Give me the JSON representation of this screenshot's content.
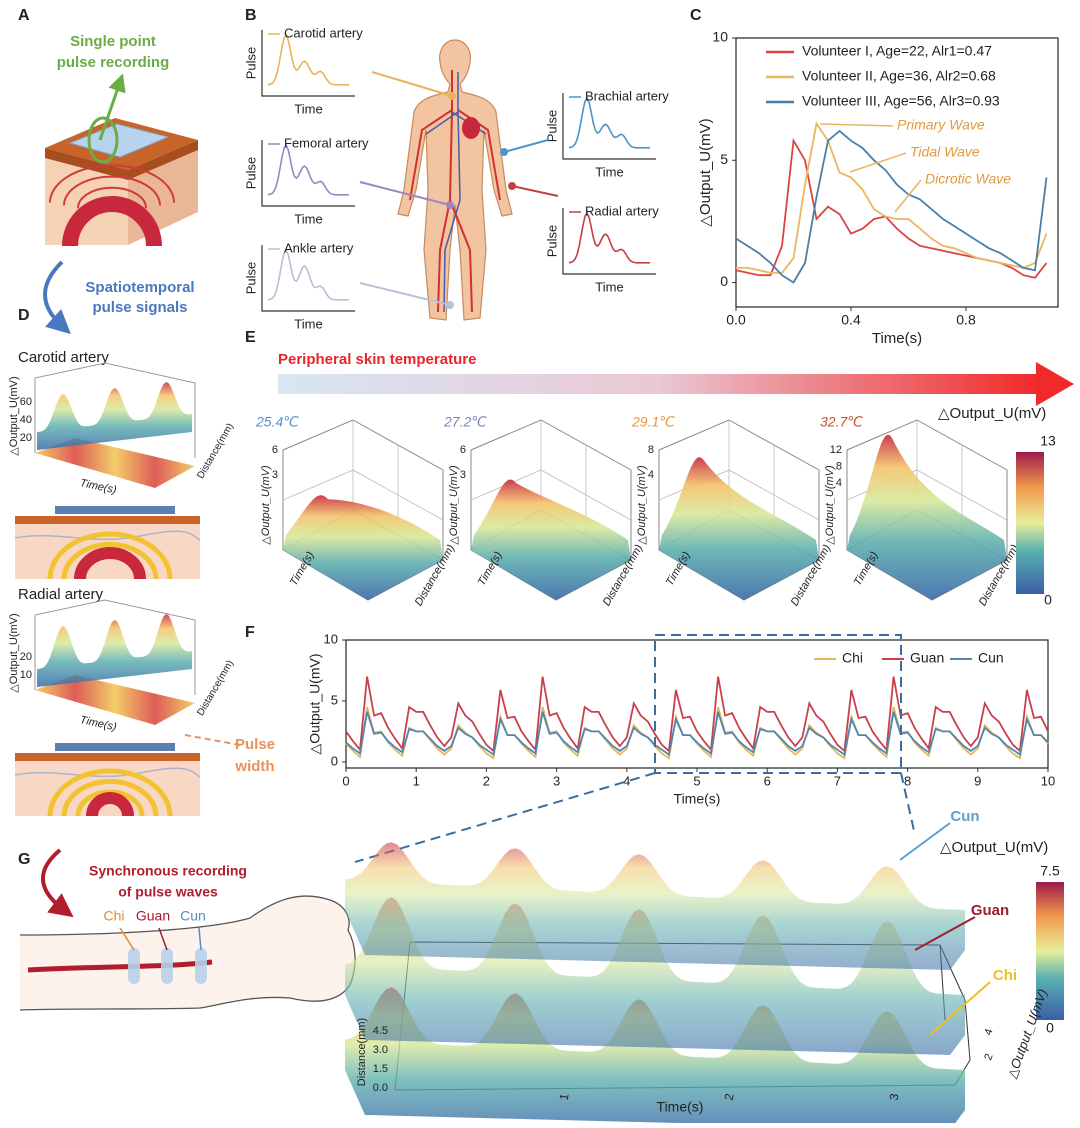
{
  "figure": {
    "panel_labels": [
      "A",
      "B",
      "C",
      "D",
      "E",
      "F",
      "G"
    ],
    "A": {
      "title_lines": [
        "Single point",
        "pulse recording"
      ],
      "arrow_lines": [
        "Spatiotemporal",
        "pulse signals"
      ]
    },
    "B": {
      "arteries": [
        {
          "name": "Carotid artery",
          "y_label": "Pulse",
          "x_label": "Time"
        },
        {
          "name": "Femoral artery",
          "y_label": "Pulse",
          "x_label": "Time"
        },
        {
          "name": "Ankle artery",
          "y_label": "Pulse",
          "x_label": "Time"
        },
        {
          "name": "Brachial artery",
          "y_label": "Pulse",
          "x_label": "Time"
        },
        {
          "name": "Radial artery",
          "y_label": "Pulse",
          "x_label": "Time"
        }
      ]
    },
    "D": {
      "sites": [
        {
          "name": "Carotid artery",
          "z_label": "△Output_U(mV)",
          "zticks": [
            "20",
            "40",
            "60"
          ],
          "x_label": "Time(s)",
          "y_label": "Distance(mm)"
        },
        {
          "name": "Radial artery",
          "z_label": "△Output_U(mV)",
          "zticks": [
            "10",
            "20"
          ],
          "x_label": "Time(s)",
          "y_label": "Distance(mm)"
        }
      ],
      "pulse_width_lines": [
        "Pulse",
        "width"
      ]
    },
    "E": {
      "title": "Peripheral skin temperature",
      "temperatures": [
        "25.4℃",
        "27.2℃",
        "29.1℃",
        "32.7℃"
      ],
      "zticks": [
        [
          "3",
          "6"
        ],
        [
          "3",
          "6"
        ],
        [
          "4",
          "8"
        ],
        [
          "4",
          "8",
          "12"
        ]
      ],
      "z_label": "△Output_U(mV)",
      "x_label": "Time(s)",
      "y_label": "Distance(mm)",
      "colorbar_label": "△Output_U(mV)",
      "colorbar_ticks": [
        "0",
        "13"
      ]
    },
    "G": {
      "title_lines": [
        "Synchronous recording",
        "of pulse waves"
      ],
      "sites": [
        "Chi",
        "Guan",
        "Cun"
      ],
      "layer_labels": [
        "Cun",
        "Guan",
        "Chi"
      ],
      "colorbar_label": "△Output_U(mV)",
      "colorbar_ticks": [
        "0",
        "7.5"
      ],
      "x_label": "Time(s)",
      "xticks": [
        "1",
        "2",
        "3"
      ],
      "y_label": "Distance(mm)",
      "yticks": [
        "0.0",
        "1.5",
        "3.0",
        "4.5"
      ],
      "z_label": "△Output_U(mV)",
      "zticks": [
        "2",
        "4"
      ]
    }
  },
  "chart_data": [
    {
      "type": "line",
      "x_label": "Time(s)",
      "y_label": "△Output_U(mV)",
      "legend": "upper left",
      "x": [
        0,
        0.04,
        0.08,
        0.12,
        0.16,
        0.2,
        0.24,
        0.28,
        0.32,
        0.36,
        0.4,
        0.44,
        0.48,
        0.52,
        0.56,
        0.6,
        0.64,
        0.68,
        0.72,
        0.76,
        0.8,
        0.84,
        0.88,
        0.92,
        0.96,
        1.0,
        1.04,
        1.08
      ],
      "series": [
        {
          "name": "Volunteer I, Age=22, Alr1=0.47",
          "color": "#d94545",
          "values": [
            0.5,
            0.4,
            0.3,
            0.3,
            1.5,
            5.8,
            5.0,
            2.6,
            3.1,
            2.8,
            2.0,
            2.2,
            2.6,
            2.7,
            2.2,
            1.8,
            1.5,
            1.4,
            1.3,
            1.2,
            1.1,
            1.0,
            0.9,
            0.8,
            0.6,
            0.3,
            0.2,
            0.8
          ]
        },
        {
          "name": "Volunteer II, Age=36, Alr2=0.68",
          "color": "#e8b760",
          "values": [
            0.6,
            0.6,
            0.5,
            0.4,
            0.4,
            1.0,
            4.0,
            6.5,
            5.8,
            4.5,
            4.3,
            3.8,
            3.0,
            2.7,
            2.6,
            2.6,
            2.2,
            1.8,
            1.5,
            1.4,
            1.2,
            1.0,
            0.9,
            0.8,
            0.7,
            0.6,
            0.8,
            2.0
          ]
        },
        {
          "name": "Volunteer III, Age=56, Alr3=0.93",
          "color": "#4a7fa8",
          "values": [
            1.8,
            1.5,
            1.2,
            0.8,
            0.3,
            0.0,
            0.8,
            3.5,
            5.8,
            6.2,
            5.8,
            5.5,
            5.0,
            4.6,
            4.0,
            3.6,
            3.4,
            3.0,
            2.6,
            2.3,
            2.0,
            1.7,
            1.4,
            1.2,
            0.9,
            0.6,
            0.5,
            4.3
          ]
        }
      ],
      "annotations": [
        "Primary Wave",
        "Tidal Wave",
        "Dicrotic Wave"
      ],
      "xlim": [
        0,
        1.12
      ],
      "xticks": [
        {
          "value": 0,
          "label": "0.0"
        },
        {
          "value": 0.4,
          "label": "0.4"
        },
        {
          "value": 0.8,
          "label": "0.8"
        }
      ],
      "ylim": [
        -1,
        10
      ],
      "yticks": [
        0,
        5,
        10
      ]
    },
    {
      "type": "line",
      "x_label": "Time(s)",
      "y_label": "△Output_U(mV)",
      "legend": "upper right",
      "x": [
        0,
        0.1,
        0.2,
        0.3,
        0.4,
        0.5,
        0.6,
        0.7,
        0.8,
        0.9,
        1.0,
        1.1,
        1.2,
        1.3,
        1.4,
        1.5,
        1.6,
        1.7,
        1.8,
        1.9,
        2.0,
        2.1,
        2.2,
        2.3,
        2.4,
        2.5,
        2.6,
        2.7,
        2.8,
        2.9,
        3.0,
        3.1,
        3.2,
        3.3,
        3.4,
        3.5,
        3.6,
        3.7,
        3.8,
        3.9,
        4.0,
        4.1,
        4.2,
        4.3,
        4.4,
        4.5,
        4.6,
        4.7,
        4.8,
        4.9,
        5.0,
        5.1,
        5.2,
        5.3,
        5.4,
        5.5,
        5.6,
        5.7,
        5.8,
        5.9,
        6.0,
        6.1,
        6.2,
        6.3,
        6.4,
        6.5,
        6.6,
        6.7,
        6.8,
        6.9,
        7.0,
        7.1,
        7.2,
        7.3,
        7.4,
        7.5,
        7.6,
        7.7,
        7.8,
        7.9,
        8.0,
        8.1,
        8.2,
        8.3,
        8.4,
        8.5,
        8.6,
        8.7,
        8.8,
        8.9,
        9.0,
        9.1,
        9.2,
        9.3,
        9.4,
        9.5,
        9.6,
        9.7,
        9.8,
        9.9,
        10.0
      ],
      "series": [
        {
          "name": "Chi",
          "color": "#e5b75b",
          "values": [
            1.5,
            0.9,
            0.4,
            4.5,
            2.4,
            2.5,
            1.6,
            1.0,
            0.5,
            2.8,
            2.5,
            2.5,
            1.8,
            1.1,
            0.6,
            1.1,
            3.0,
            2.4,
            2.0,
            1.3,
            0.7,
            0.3,
            3.7,
            2.2,
            2.2,
            1.5,
            0.9,
            0.4,
            4.5,
            2.4,
            2.5,
            1.6,
            1.0,
            0.5,
            2.8,
            2.5,
            2.5,
            1.8,
            1.1,
            0.6,
            1.1,
            3.0,
            2.4,
            2.0,
            1.3,
            0.7,
            0.3,
            3.7,
            2.2,
            2.2,
            1.5,
            0.9,
            0.4,
            4.5,
            2.4,
            2.5,
            1.6,
            1.0,
            0.5,
            2.8,
            2.5,
            2.5,
            1.8,
            1.1,
            0.6,
            1.1,
            3.0,
            2.4,
            2.0,
            1.3,
            0.7,
            0.3,
            3.7,
            2.2,
            2.2,
            1.5,
            0.9,
            0.4,
            4.5,
            2.4,
            2.5,
            1.6,
            1.0,
            0.5,
            2.8,
            2.5,
            2.5,
            1.8,
            1.1,
            0.6,
            1.1,
            3.0,
            2.4,
            2.0,
            1.3,
            0.7,
            0.3,
            3.7,
            2.2,
            2.2,
            1.5
          ]
        },
        {
          "name": "Guan",
          "color": "#c9404a",
          "values": [
            2.5,
            1.7,
            1.0,
            7.0,
            3.8,
            4.0,
            2.8,
            1.9,
            1.1,
            4.5,
            4.1,
            4.1,
            3.0,
            2.0,
            1.3,
            2.0,
            4.8,
            3.8,
            3.3,
            2.3,
            1.4,
            0.9,
            5.9,
            3.6,
            3.7,
            2.5,
            1.7,
            1.0,
            7.0,
            3.8,
            4.0,
            2.8,
            1.9,
            1.1,
            4.5,
            4.1,
            4.1,
            3.0,
            2.0,
            1.3,
            2.0,
            4.8,
            3.8,
            3.3,
            2.3,
            1.4,
            0.9,
            5.9,
            3.6,
            3.7,
            2.5,
            1.7,
            1.0,
            7.0,
            3.8,
            4.0,
            2.8,
            1.9,
            1.1,
            4.5,
            4.1,
            4.1,
            3.0,
            2.0,
            1.3,
            2.0,
            4.8,
            3.8,
            3.3,
            2.3,
            1.4,
            0.9,
            5.9,
            3.6,
            3.7,
            2.5,
            1.7,
            1.0,
            7.0,
            3.8,
            4.0,
            2.8,
            1.9,
            1.1,
            4.5,
            4.1,
            4.1,
            3.0,
            2.0,
            1.3,
            2.0,
            4.8,
            3.8,
            3.3,
            2.3,
            1.4,
            0.9,
            5.9,
            3.6,
            3.7,
            2.5
          ]
        },
        {
          "name": "Cun",
          "color": "#4f86b5",
          "values": [
            1.6,
            1.1,
            0.7,
            4.1,
            2.3,
            2.4,
            1.7,
            1.2,
            0.8,
            2.7,
            2.5,
            2.5,
            1.9,
            1.3,
            0.9,
            1.3,
            2.8,
            2.3,
            2.0,
            1.4,
            1.0,
            0.6,
            3.5,
            2.2,
            2.2,
            1.6,
            1.1,
            0.7,
            4.1,
            2.3,
            2.4,
            1.7,
            1.2,
            0.8,
            2.7,
            2.5,
            2.5,
            1.9,
            1.3,
            0.9,
            1.3,
            2.8,
            2.3,
            2.0,
            1.4,
            1.0,
            0.6,
            3.5,
            2.2,
            2.2,
            1.6,
            1.1,
            0.7,
            4.1,
            2.3,
            2.4,
            1.7,
            1.2,
            0.8,
            2.7,
            2.5,
            2.5,
            1.9,
            1.3,
            0.9,
            1.3,
            2.8,
            2.3,
            2.0,
            1.4,
            1.0,
            0.6,
            3.5,
            2.2,
            2.2,
            1.6,
            1.1,
            0.7,
            4.1,
            2.3,
            2.4,
            1.7,
            1.2,
            0.8,
            2.7,
            2.5,
            2.5,
            1.9,
            1.3,
            0.9,
            1.3,
            2.8,
            2.3,
            2.0,
            1.4,
            1.0,
            0.6,
            3.5,
            2.2,
            2.2,
            1.6
          ]
        }
      ],
      "xlim": [
        0,
        10
      ],
      "xticks": [
        0,
        1,
        2,
        3,
        4,
        5,
        6,
        7,
        8,
        9,
        10
      ],
      "ylim": [
        -0.5,
        10
      ],
      "yticks": [
        0,
        5,
        10
      ]
    }
  ]
}
